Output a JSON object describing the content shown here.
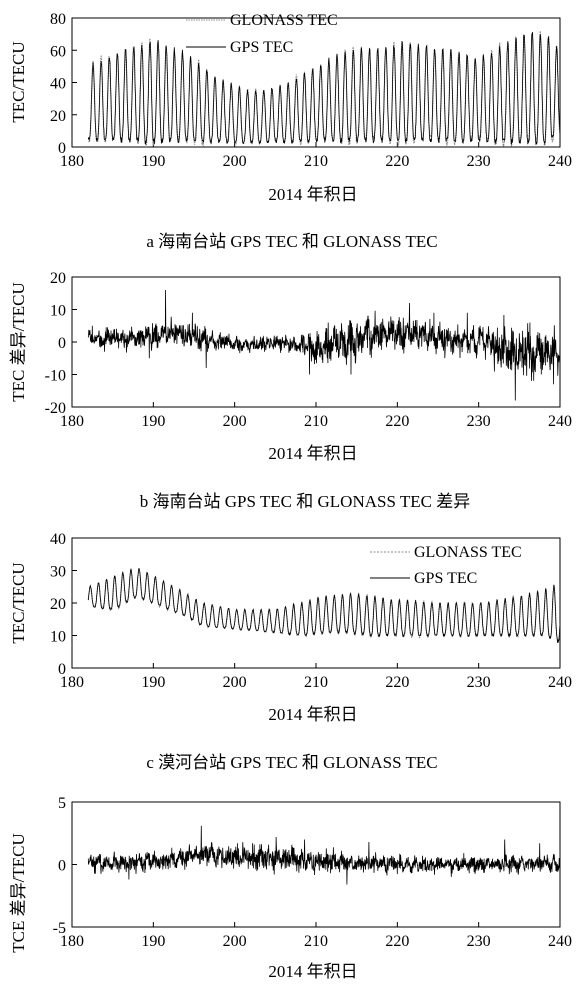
{
  "chart_data": [
    {
      "id": "a",
      "type": "line",
      "caption": "a 海南台站 GPS TEC 和 GLONASS TEC",
      "xlabel": "2014 年积日",
      "ylabel": "TEC/TECU",
      "xlim": [
        180,
        240
      ],
      "ylim": [
        0,
        80
      ],
      "xticks": [
        180,
        190,
        200,
        210,
        220,
        230,
        240
      ],
      "yticks": [
        0,
        20,
        40,
        60,
        80
      ],
      "legend_position": "top-center",
      "series": [
        {
          "name": "GLONASS TEC",
          "style": "dotted",
          "color": "#8a8a8a"
        },
        {
          "name": "GPS TEC",
          "style": "solid",
          "color": "#000000"
        }
      ],
      "daily_pattern": {
        "day_start": 182,
        "day_end": 240,
        "samples_per_day": 24,
        "days": [
          182,
          186,
          190,
          194,
          198,
          202,
          206,
          210,
          214,
          218,
          222,
          226,
          230,
          234,
          236,
          238,
          239.9
        ],
        "peaks": [
          50,
          60,
          66,
          58,
          42,
          34,
          38,
          50,
          60,
          62,
          65,
          60,
          55,
          65,
          72,
          70,
          60
        ],
        "troughs": [
          5,
          4,
          3,
          4,
          3,
          3,
          3,
          4,
          4,
          4,
          4,
          4,
          4,
          3,
          3,
          3,
          8
        ],
        "peak_hour": 14
      }
    },
    {
      "id": "b",
      "type": "line",
      "caption": "b 海南台站 GPS TEC 和 GLONASS TEC 差异",
      "xlabel": "2014 年积日",
      "ylabel": "TEC 差异/TECU",
      "xlim": [
        180,
        240
      ],
      "ylim": [
        -20,
        20
      ],
      "xticks": [
        180,
        190,
        200,
        210,
        220,
        230,
        240
      ],
      "yticks": [
        -20,
        -10,
        0,
        10,
        20
      ],
      "series": [
        {
          "name": "",
          "style": "solid",
          "color": "#000000",
          "range": [
            182,
            240
          ],
          "mean": [
            [
              182,
              1
            ],
            [
              186,
              1
            ],
            [
              190,
              2
            ],
            [
              193,
              3
            ],
            [
              195,
              2
            ],
            [
              198,
              0
            ],
            [
              202,
              -1
            ],
            [
              206,
              0
            ],
            [
              208,
              -1
            ],
            [
              210,
              -2
            ],
            [
              213,
              0
            ],
            [
              216,
              2
            ],
            [
              220,
              3
            ],
            [
              224,
              2
            ],
            [
              226,
              0
            ],
            [
              230,
              1
            ],
            [
              233,
              -2
            ],
            [
              235,
              -4
            ],
            [
              237,
              -3
            ],
            [
              240,
              -3
            ]
          ],
          "amplitude": [
            [
              182,
              2
            ],
            [
              190,
              3
            ],
            [
              195,
              3
            ],
            [
              200,
              2
            ],
            [
              207,
              2
            ],
            [
              210,
              4
            ],
            [
              215,
              5
            ],
            [
              222,
              4
            ],
            [
              228,
              3
            ],
            [
              233,
              6
            ],
            [
              236,
              6
            ],
            [
              240,
              5
            ]
          ],
          "spikes": [
            [
              182.5,
              5
            ],
            [
              184,
              -3
            ],
            [
              189.5,
              -5
            ],
            [
              191.5,
              16
            ],
            [
              194.8,
              9
            ],
            [
              196.5,
              -8
            ],
            [
              209.2,
              -10
            ],
            [
              211.5,
              6
            ],
            [
              214.3,
              -10
            ],
            [
              216.5,
              7
            ],
            [
              221.5,
              12
            ],
            [
              224.5,
              9
            ],
            [
              228.6,
              9
            ],
            [
              234.5,
              -18
            ],
            [
              236.3,
              6
            ],
            [
              239.2,
              -13
            ]
          ]
        }
      ]
    },
    {
      "id": "c",
      "type": "line",
      "caption": "c 漠河台站 GPS TEC 和 GLONASS TEC",
      "xlabel": "2014 年积日",
      "ylabel": "TEC/TECU",
      "xlim": [
        180,
        240
      ],
      "ylim": [
        0,
        40
      ],
      "xticks": [
        180,
        190,
        200,
        210,
        220,
        230,
        240
      ],
      "yticks": [
        0,
        10,
        20,
        30,
        40
      ],
      "legend_position": "top-right",
      "series": [
        {
          "name": "GLONASS TEC",
          "style": "dotted",
          "color": "#8a8a8a"
        },
        {
          "name": "GPS TEC",
          "style": "solid",
          "color": "#000000"
        }
      ],
      "daily_pattern": {
        "day_start": 182,
        "day_end": 240,
        "samples_per_day": 24,
        "days": [
          182,
          185,
          188,
          191,
          194,
          196,
          200,
          205,
          208,
          211,
          214,
          217,
          220,
          225,
          230,
          235,
          238,
          239.9
        ],
        "peaks": [
          25,
          28,
          31,
          27,
          23,
          20,
          18,
          18,
          20,
          22,
          23,
          22,
          21,
          20,
          20,
          22,
          24,
          26
        ],
        "troughs": [
          19,
          18,
          22,
          19,
          16,
          13,
          12,
          11,
          10,
          11,
          11,
          10,
          10,
          10,
          10,
          10,
          10,
          8
        ],
        "peak_hour": 6
      }
    },
    {
      "id": "d",
      "type": "line",
      "caption": "",
      "xlabel": "2014 年积日",
      "ylabel": "TCE 差异/TECU",
      "xlim": [
        180,
        240
      ],
      "ylim": [
        -5,
        5
      ],
      "xticks": [
        180,
        190,
        200,
        210,
        220,
        230,
        240
      ],
      "yticks": [
        -5,
        0,
        5
      ],
      "series": [
        {
          "name": "",
          "style": "solid",
          "color": "#000000",
          "range": [
            182,
            240
          ],
          "mean": [
            [
              182,
              0.1
            ],
            [
              190,
              0.2
            ],
            [
              196,
              0.8
            ],
            [
              200,
              0.6
            ],
            [
              205,
              0.5
            ],
            [
              210,
              0.2
            ],
            [
              215,
              0.1
            ],
            [
              220,
              0.0
            ],
            [
              230,
              0.0
            ],
            [
              240,
              0.1
            ]
          ],
          "amplitude": [
            [
              182,
              0.55
            ],
            [
              195,
              0.7
            ],
            [
              205,
              0.8
            ],
            [
              215,
              0.6
            ],
            [
              240,
              0.5
            ]
          ],
          "spikes": [
            [
              187,
              -1.2
            ],
            [
              195.9,
              3.1
            ],
            [
              205.1,
              2.2
            ],
            [
              208.6,
              2.0
            ],
            [
              213.8,
              -1.6
            ],
            [
              216.5,
              1.8
            ],
            [
              233.2,
              2.0
            ],
            [
              237.5,
              1.7
            ]
          ]
        }
      ]
    }
  ]
}
